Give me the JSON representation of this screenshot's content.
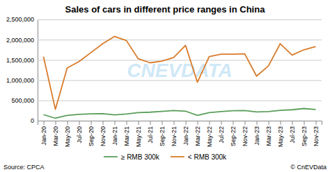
{
  "chart_data": {
    "type": "line",
    "title": "Sales of cars in different price ranges in China",
    "categories": [
      "Jan-20",
      "Mar-20",
      "May-20",
      "Jul-20",
      "Sep-20",
      "Nov-20",
      "Jan-21",
      "Mar-21",
      "May-21",
      "Jul-21",
      "Sep-21",
      "Nov-21",
      "Jan-22",
      "Mar-22",
      "May-22",
      "Jul-22",
      "Sep-22",
      "Nov-22",
      "Jan-23",
      "Mar-23",
      "May-23",
      "Jul-23",
      "Sep-23",
      "Nov-23"
    ],
    "series": [
      {
        "name": "≥ RMB 300k",
        "color": "#5a9e5a",
        "values": [
          150000,
          60000,
          130000,
          155000,
          170000,
          175000,
          145000,
          165000,
          200000,
          210000,
          230000,
          250000,
          235000,
          130000,
          200000,
          225000,
          245000,
          250000,
          215000,
          225000,
          255000,
          270000,
          300000,
          275000
        ]
      },
      {
        "name": "< RMB 300k",
        "color": "#d97b2a",
        "values": [
          1580000,
          280000,
          1300000,
          1460000,
          1680000,
          1900000,
          2080000,
          1980000,
          1530000,
          1430000,
          1470000,
          1560000,
          1860000,
          950000,
          1580000,
          1640000,
          1640000,
          1650000,
          1100000,
          1350000,
          1900000,
          1620000,
          1750000,
          1830000
        ]
      }
    ],
    "ylim": [
      0,
      2500000
    ],
    "yticks": [
      0,
      {
        "value": 500000,
        "label": "500,000"
      },
      {
        "value": 1000000,
        "label": "1,000,000"
      },
      {
        "value": 1500000,
        "label": "1,500,000"
      },
      {
        "value": 2000000,
        "label": "2,000,000"
      },
      {
        "value": 2500000,
        "label": "2,500,000"
      }
    ],
    "grid": true,
    "legend": "bottom",
    "annotations": [
      "CNEVDATA",
      "Source: CPCA",
      "© CnEVData"
    ]
  }
}
